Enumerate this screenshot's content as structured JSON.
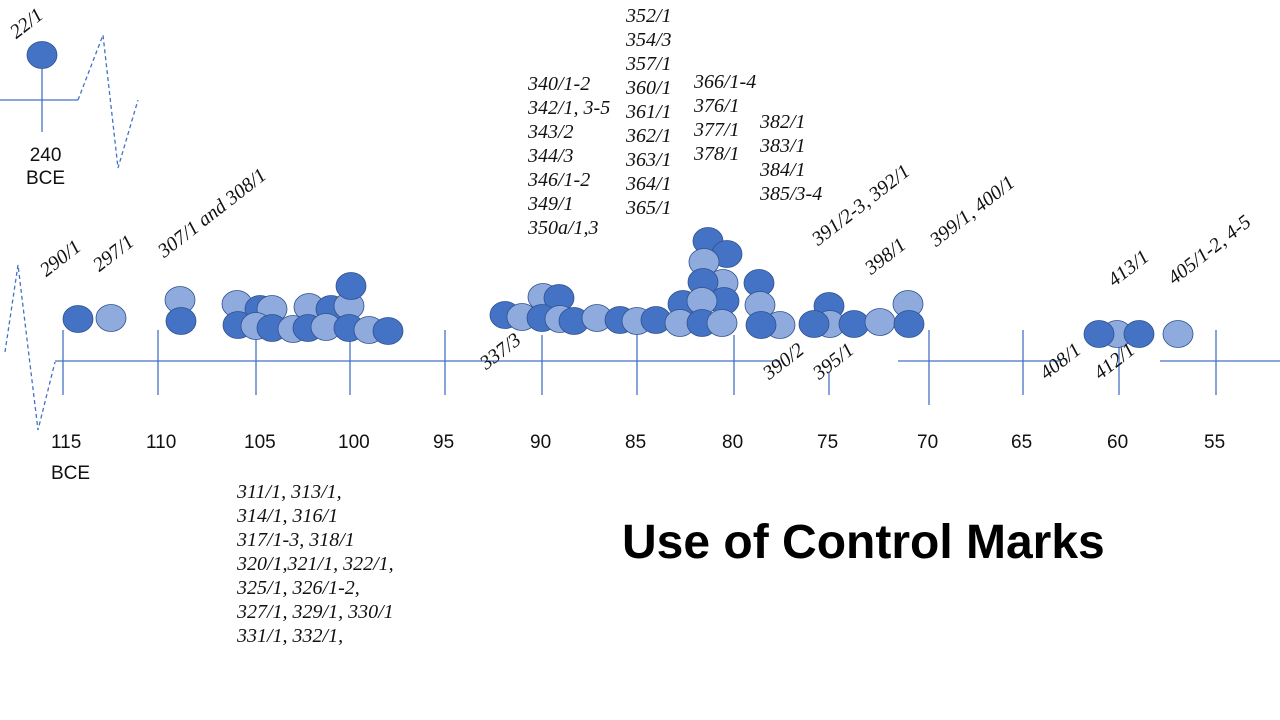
{
  "title": "Use of Control Marks",
  "colors": {
    "dark": "#4472C4",
    "light": "#8FAADC",
    "stroke": "#2F528F",
    "axis": "#4472C4"
  },
  "inset": {
    "label": "22/1",
    "year": "240",
    "era": "BCE"
  },
  "ticks": [
    "115",
    "110",
    "105",
    "100",
    "95",
    "90",
    "85",
    "80",
    "75",
    "70",
    "65",
    "60",
    "55"
  ],
  "first_tick_era": "BCE",
  "rotated_labels": [
    "290/1",
    "297/1",
    "307/1 and 308/1",
    "337/3",
    "390/2",
    "395/1",
    "391/2-3, 392/1",
    "398/1",
    "399/1, 400/1",
    "408/1",
    "412/1",
    "413/1",
    "405/1-2, 4-5"
  ],
  "stacks": {
    "bottom_105_100": [
      "311/1, 313/1,",
      "314/1, 316/1",
      "317/1-3, 318/1",
      "320/1,321/1, 322/1,",
      "325/1, 326/1-2,",
      "327/1, 329/1, 330/1",
      "331/1, 332/1,"
    ],
    "top_90": [
      "340/1-2",
      "342/1, 3-5",
      "343/2",
      "344/3",
      "346/1-2",
      "349/1",
      "350a/1,3"
    ],
    "top_85": [
      "352/1",
      "354/3",
      "357/1",
      "360/1",
      "361/1",
      "362/1",
      "363/1",
      "364/1",
      "365/1"
    ],
    "top_82": [
      "366/1-4",
      "376/1",
      "377/1",
      "378/1"
    ],
    "top_79": [
      "382/1",
      "383/1",
      "384/1",
      "385/3-4"
    ]
  }
}
